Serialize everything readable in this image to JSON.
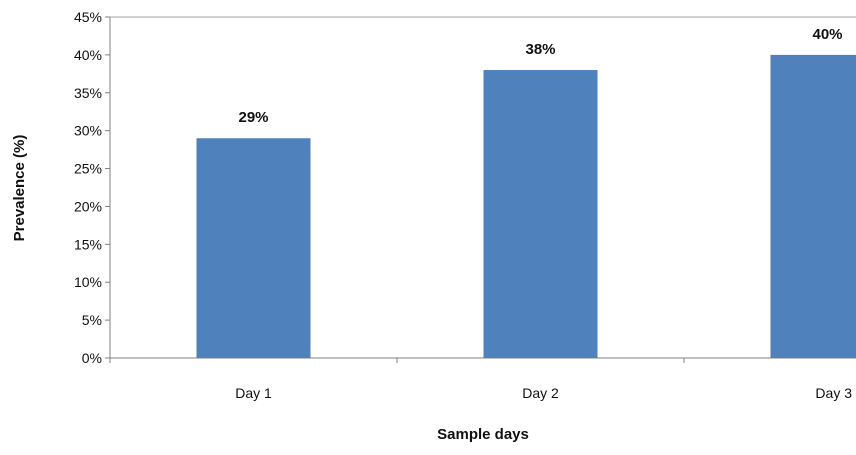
{
  "chart_data": {
    "type": "bar",
    "categories": [
      "Day 1",
      "Day 2",
      "Day 3"
    ],
    "values": [
      29,
      38,
      40
    ],
    "data_labels": [
      "29%",
      "38%",
      "40%"
    ],
    "title": "",
    "xlabel": "Sample days",
    "ylabel": "Prevalence (%)",
    "ylim": [
      0,
      45
    ],
    "yticks": [
      "0%",
      "5%",
      "10%",
      "15%",
      "20%",
      "25%",
      "30%",
      "35%",
      "40%",
      "45%"
    ],
    "grid": false,
    "legend": "none",
    "bar_color": "#4f81bd"
  }
}
